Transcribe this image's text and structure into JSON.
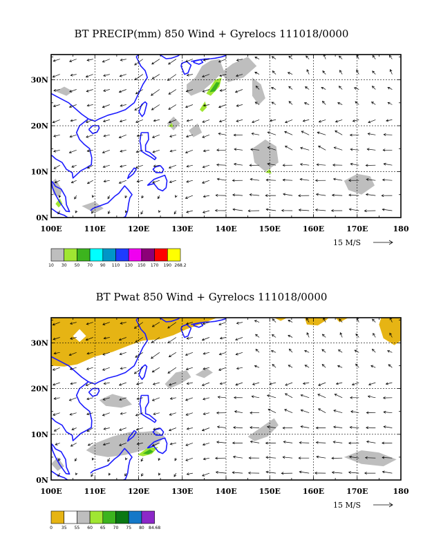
{
  "panels": [
    {
      "title": "BT PRECIP(mm) 850 Wind + Gyrelocs 111018/0000",
      "ylabels": [
        "0N",
        "10N",
        "20N",
        "30N"
      ],
      "xlabels": [
        "100E",
        "110E",
        "120E",
        "130E",
        "140E",
        "150E",
        "160E",
        "170E",
        "180"
      ],
      "vector_ref": "15 M/S",
      "colorbar": {
        "colors": [
          "#bebebe",
          "#a0e632",
          "#3cb41e",
          "#00ffff",
          "#0096c8",
          "#1e3cff",
          "#f000f0",
          "#8c0078",
          "#ff0000",
          "#ffff00"
        ],
        "labels": [
          "10",
          "30",
          "50",
          "70",
          "90",
          "110",
          "130",
          "150",
          "170",
          "190",
          "268.2"
        ]
      }
    },
    {
      "title": "BT Pwat 850 Wind + Gyrelocs 111018/0000",
      "ylabels": [
        "0N",
        "10N",
        "20N",
        "30N"
      ],
      "xlabels": [
        "100E",
        "110E",
        "120E",
        "130E",
        "140E",
        "150E",
        "160E",
        "170E",
        "180"
      ],
      "vector_ref": "15 M/S",
      "colorbar": {
        "colors": [
          "#e6b414",
          "#ffffff",
          "#bebebe",
          "#a0e632",
          "#3cb41e",
          "#0a7814",
          "#1478c8",
          "#8c28c8"
        ],
        "labels": [
          "0",
          "35",
          "55",
          "60",
          "65",
          "70",
          "75",
          "80",
          "84.68"
        ]
      }
    }
  ]
}
